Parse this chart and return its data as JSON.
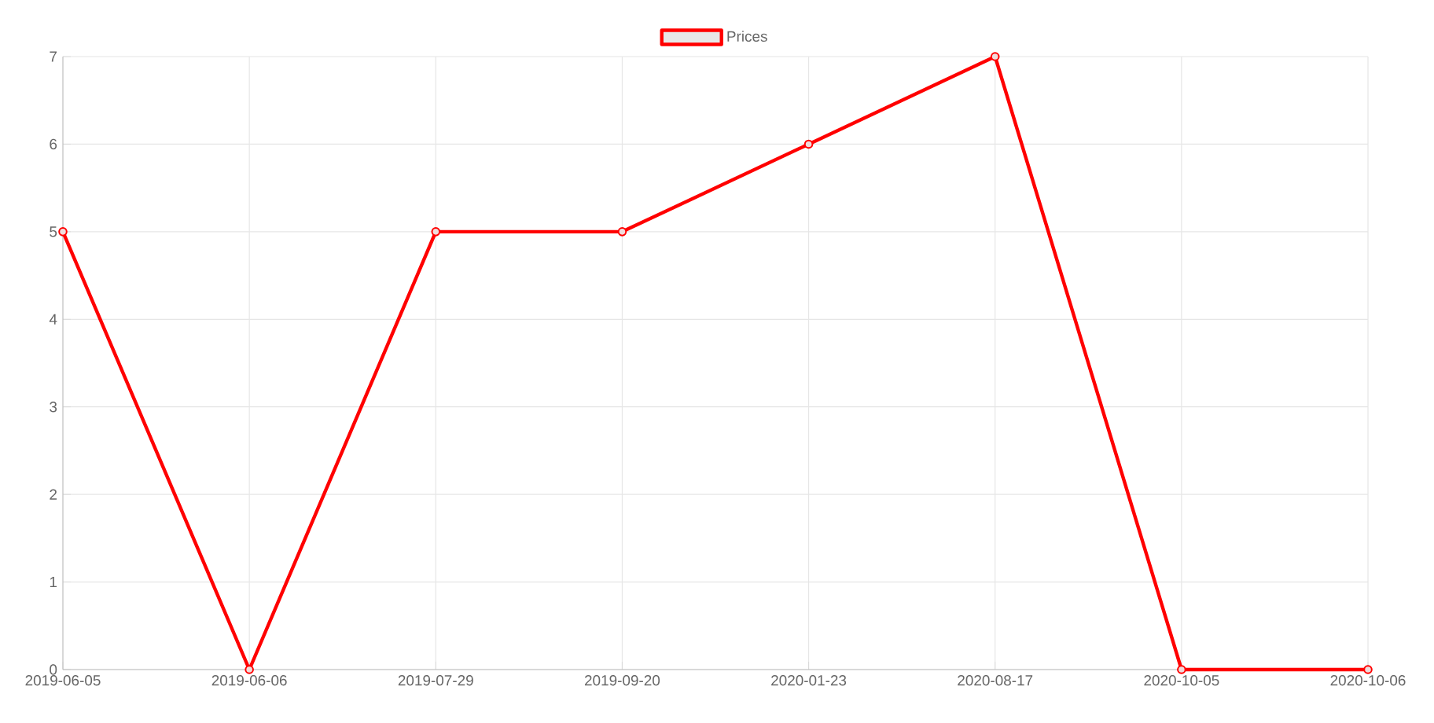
{
  "chart_data": {
    "type": "line",
    "categories": [
      "2019-06-05",
      "2019-06-06",
      "2019-07-29",
      "2019-09-20",
      "2020-01-23",
      "2020-08-17",
      "2020-10-05",
      "2020-10-06"
    ],
    "series": [
      {
        "name": "Prices",
        "color": "#ff0000",
        "values": [
          5,
          0,
          5,
          5,
          6,
          7,
          0,
          0
        ]
      }
    ],
    "ylim": [
      0,
      7
    ],
    "yticks": [
      0,
      1,
      2,
      3,
      4,
      5,
      6,
      7
    ],
    "grid": true,
    "legend": "top",
    "marker": "circle",
    "line_style": "solid"
  }
}
